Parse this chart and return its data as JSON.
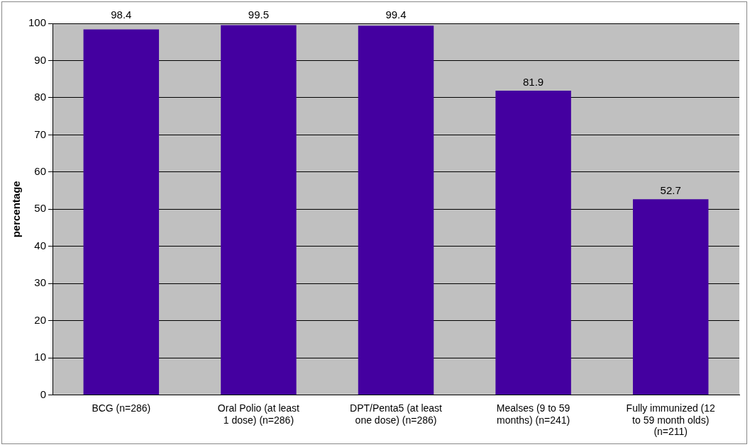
{
  "chart_data": {
    "type": "bar",
    "ylabel": "percentage",
    "categories": [
      "BCG (n=286)",
      "Oral Polio (at least 1 dose) (n=286)",
      "DPT/Penta5 (at least one dose) (n=286)",
      "Mealses (9 to 59 months) (n=241)",
      "Fully immunized (12 to 59 month olds) (n=211)"
    ],
    "values": [
      98.4,
      99.5,
      99.4,
      81.9,
      52.7
    ],
    "color": "#4400a0",
    "ylim": [
      0,
      100
    ],
    "yticks": [
      0,
      10,
      20,
      30,
      40,
      50,
      60,
      70,
      80,
      90,
      100
    ],
    "grid": "y",
    "legend": false,
    "data_labels": true
  }
}
